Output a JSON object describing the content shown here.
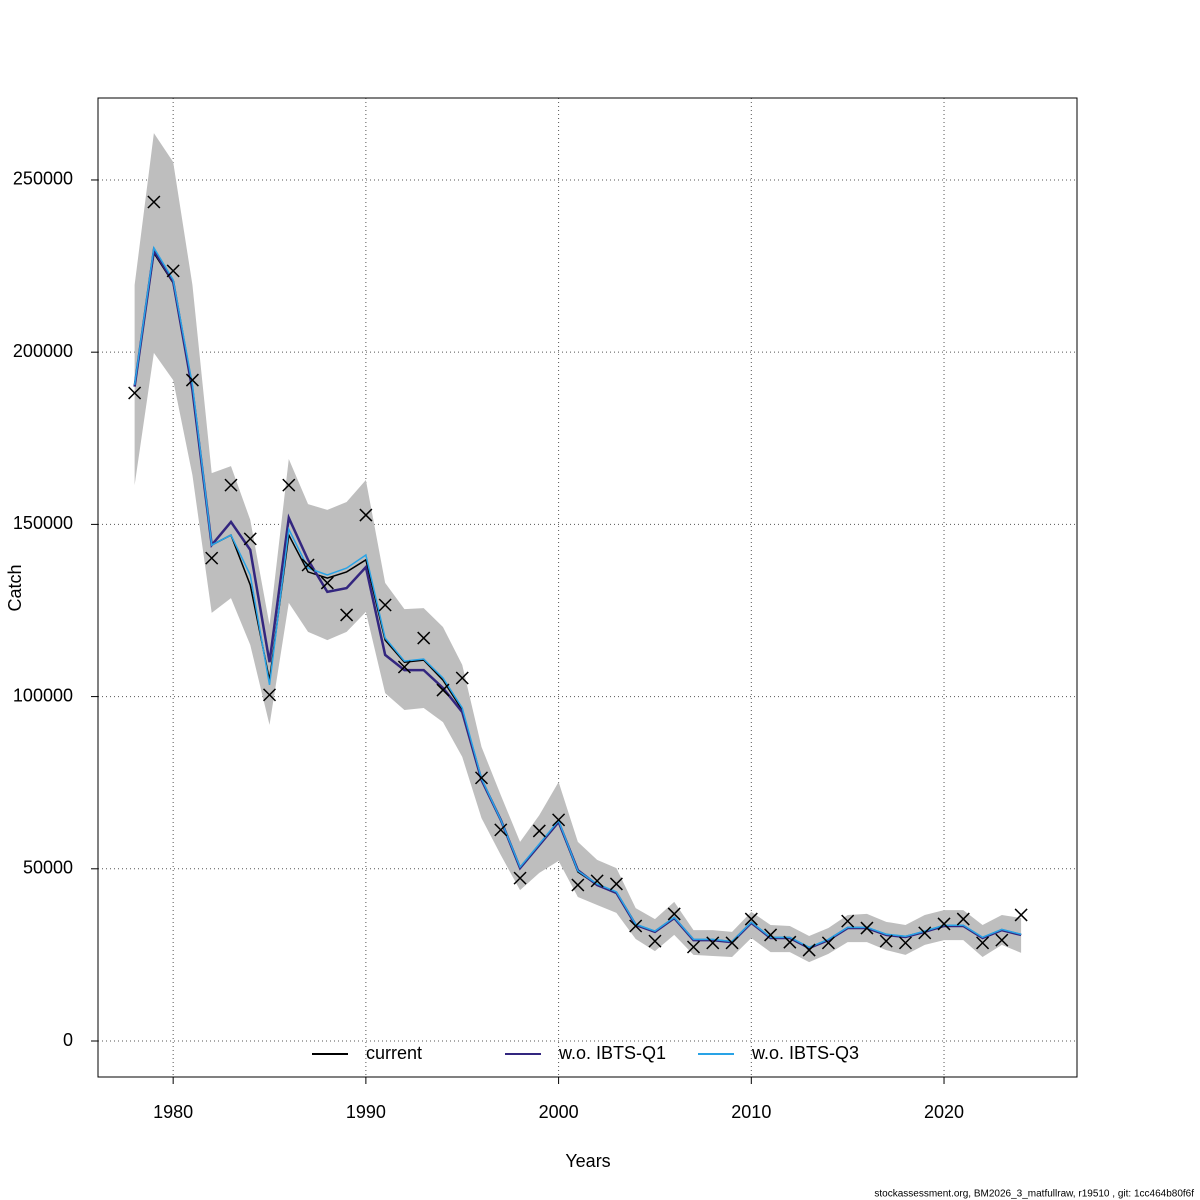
{
  "chart_data": {
    "type": "line",
    "x_label": "Years",
    "y_label": "Catch",
    "footer": "stockassessment.org, BM2026_3_matfullraw, r19510 , git: 1cc464b80f6f",
    "x": [
      1978,
      1979,
      1980,
      1981,
      1982,
      1983,
      1984,
      1985,
      1986,
      1987,
      1988,
      1989,
      1990,
      1991,
      1992,
      1993,
      1994,
      1995,
      1996,
      1997,
      1998,
      1999,
      2000,
      2001,
      2002,
      2003,
      2004,
      2005,
      2006,
      2007,
      2008,
      2009,
      2010,
      2011,
      2012,
      2013,
      2014,
      2015,
      2016,
      2017,
      2018,
      2019,
      2020,
      2021,
      2022,
      2023,
      2024
    ],
    "xlim": [
      1976.1,
      2026.9
    ],
    "xticks": [
      1980,
      1990,
      2000,
      2010,
      2020
    ],
    "ylim": [
      -10450,
      273800
    ],
    "yticks": [
      0,
      50000,
      100000,
      150000,
      200000,
      250000
    ],
    "grid": true,
    "legend": "bottom",
    "band": {
      "color": "#bebebe",
      "upper": [
        219500,
        263600,
        255200,
        219500,
        164900,
        166900,
        151300,
        120800,
        169000,
        155900,
        154200,
        156500,
        162900,
        133000,
        125400,
        125700,
        120200,
        109200,
        85400,
        71400,
        57800,
        65600,
        75200,
        57800,
        52600,
        50200,
        38600,
        35400,
        40400,
        32200,
        32200,
        31700,
        37500,
        33700,
        33400,
        30500,
        32800,
        36600,
        36900,
        34600,
        33700,
        36600,
        38000,
        38000,
        33700,
        36600,
        35700
      ],
      "lower": [
        161400,
        199800,
        191900,
        164300,
        124300,
        128600,
        115000,
        91800,
        127200,
        118800,
        116400,
        118800,
        124600,
        101000,
        96100,
        96700,
        92600,
        82500,
        64700,
        54000,
        43800,
        48800,
        52300,
        41800,
        39500,
        37200,
        29600,
        26100,
        30800,
        25000,
        24700,
        24400,
        29900,
        25800,
        25800,
        22900,
        25300,
        28700,
        28700,
        26400,
        25000,
        27900,
        29300,
        29300,
        24400,
        27900,
        25600
      ]
    },
    "observations": {
      "color": "#000000",
      "values": [
        188150,
        243600,
        223600,
        191900,
        140200,
        161400,
        145800,
        100500,
        161400,
        138200,
        133000,
        123700,
        152700,
        126600,
        108600,
        117000,
        101900,
        105400,
        76400,
        61300,
        47300,
        61000,
        64200,
        45300,
        46500,
        45600,
        33400,
        29000,
        36900,
        27300,
        28500,
        28500,
        35400,
        30800,
        28700,
        26400,
        28500,
        34800,
        32800,
        29000,
        28500,
        31400,
        34000,
        35400,
        28500,
        29300,
        36600
      ]
    },
    "series": [
      {
        "name": "current",
        "color": "#000000",
        "values": [
          190500,
          228800,
          220100,
          189000,
          144000,
          146900,
          132400,
          104800,
          146900,
          136200,
          134400,
          136200,
          139700,
          116400,
          110000,
          110600,
          104800,
          96100,
          75800,
          64200,
          50200,
          56900,
          63600,
          49100,
          45300,
          43000,
          33700,
          31700,
          35700,
          29300,
          29300,
          28700,
          34300,
          29900,
          29900,
          27000,
          29300,
          32800,
          32800,
          30800,
          30200,
          31700,
          33400,
          33400,
          29900,
          32200,
          30800
        ]
      },
      {
        "name": "w.o. IBTS-Q1",
        "color": "#33267f",
        "values": [
          190000,
          229500,
          220500,
          189000,
          144000,
          150700,
          142600,
          110000,
          151900,
          139700,
          130400,
          131500,
          137600,
          112100,
          107700,
          107700,
          102500,
          95500,
          75800,
          64200,
          50200,
          56900,
          63600,
          49600,
          45300,
          43000,
          33700,
          31700,
          35700,
          29300,
          29300,
          28700,
          34300,
          29900,
          29900,
          27000,
          29300,
          32800,
          32800,
          30800,
          30200,
          31700,
          33400,
          33400,
          29900,
          32200,
          30800
        ]
      },
      {
        "name": "w.o. IBTS-Q3",
        "color": "#29a3e6",
        "values": [
          190500,
          230300,
          221000,
          190500,
          144000,
          146900,
          135300,
          103400,
          148600,
          137300,
          135300,
          137300,
          141100,
          117000,
          110300,
          110900,
          105400,
          96700,
          76200,
          64200,
          50500,
          57200,
          64000,
          49400,
          45600,
          43300,
          33900,
          31900,
          35900,
          29500,
          29500,
          28900,
          34500,
          30100,
          30100,
          27200,
          29500,
          33000,
          33000,
          31000,
          30400,
          31900,
          33600,
          33600,
          30100,
          32400,
          31000
        ]
      }
    ]
  }
}
